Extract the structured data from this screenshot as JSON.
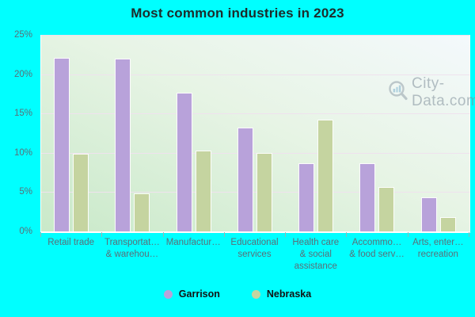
{
  "title": "Most common industries in 2023",
  "watermark": "City-Data.com",
  "colors": {
    "background": "#00ffff",
    "garrison_bar": "#b8a2da",
    "nebraska_bar": "#c5d4a0",
    "gridline": "#efe2ee",
    "axis_text": "#5a6e78",
    "title_text": "#1d2b2b"
  },
  "chart_data": {
    "type": "bar",
    "title": "Most common industries in 2023",
    "categories": [
      "Retail trade",
      "Transportat… & warehou…",
      "Manufactur…",
      "Educational services",
      "Health care & social assistance",
      "Accommo… & food serv…",
      "Arts, enter… recreation"
    ],
    "category_lines": [
      [
        "Retail trade"
      ],
      [
        "Transportat…",
        "& warehou…"
      ],
      [
        "Manufactur…"
      ],
      [
        "Educational",
        "services"
      ],
      [
        "Health care",
        "& social",
        "assistance"
      ],
      [
        "Accommo…",
        "& food serv…"
      ],
      [
        "Arts, enter…",
        "recreation"
      ]
    ],
    "series": [
      {
        "name": "Garrison",
        "color": "#b8a2da",
        "values": [
          22.2,
          22.1,
          17.7,
          13.3,
          8.8,
          8.8,
          4.4
        ]
      },
      {
        "name": "Nebraska",
        "color": "#c5d4a0",
        "values": [
          10.0,
          4.9,
          10.4,
          10.1,
          14.3,
          5.7,
          1.9
        ]
      }
    ],
    "xlabel": "",
    "ylabel": "",
    "ylim": [
      0,
      25
    ],
    "yticks": [
      "0%",
      "5%",
      "10%",
      "15%",
      "20%",
      "25%"
    ],
    "grid": true,
    "legend_position": "bottom"
  }
}
